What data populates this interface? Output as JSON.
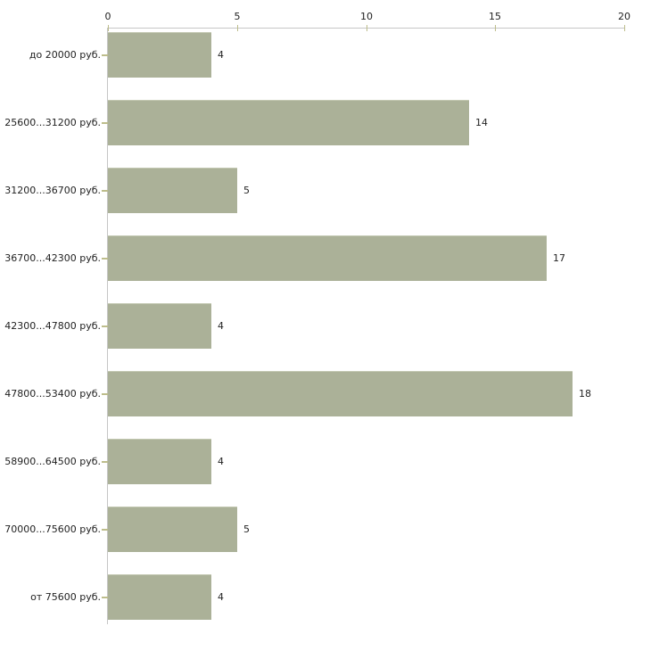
{
  "chart_data": {
    "type": "bar",
    "orientation": "horizontal",
    "title": "",
    "xlabel": "",
    "ylabel": "",
    "categories": [
      "до 20000 руб.",
      "25600...31200 руб.",
      "31200...36700 руб.",
      "36700...42300 руб.",
      "42300...47800 руб.",
      "47800...53400 руб.",
      "58900...64500 руб.",
      "70000...75600 руб.",
      "от 75600 руб."
    ],
    "values": [
      4,
      14,
      5,
      17,
      4,
      18,
      4,
      5,
      4
    ],
    "xlim": [
      0,
      20
    ],
    "x_ticks": [
      "0",
      "5",
      "10",
      "15",
      "20"
    ],
    "x_tick_values": [
      0,
      5,
      10,
      15,
      20
    ],
    "grid": false,
    "legend": false,
    "value_labels_shown": true,
    "colors": {
      "bar": "#abb198",
      "bar_top_edge": "#c3c8b2",
      "axis_line": "#c6c6c6",
      "tick_mark": "#bdbd8b",
      "text": "#222222",
      "background": "#ffffff"
    }
  }
}
